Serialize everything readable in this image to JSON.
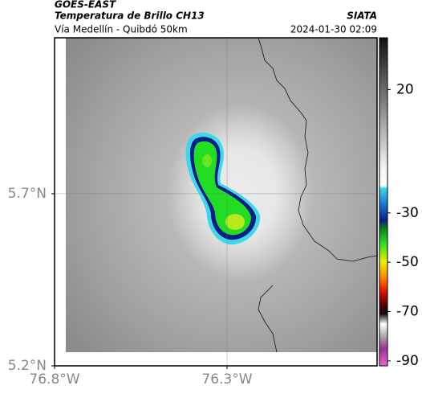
{
  "header": {
    "title": "GOES-EAST",
    "subtitle": "Temperatura de Brillo CH13",
    "location": "Vía Medellín - Quibdó 50km",
    "source": "SIATA",
    "timestamp": "2024-01-30 02:09"
  },
  "map": {
    "xlim": [
      -76.8,
      -75.865
    ],
    "ylim": [
      5.2,
      6.153
    ],
    "xticks": [
      {
        "value": -76.8,
        "label": "76.8°W"
      },
      {
        "value": -76.3,
        "label": "76.3°W"
      }
    ],
    "yticks": [
      {
        "value": 5.2,
        "label": "5.2°N"
      },
      {
        "value": 5.7,
        "label": "5.7°N"
      }
    ],
    "grid": true
  },
  "colorbar": {
    "lim": [
      -92,
      41
    ],
    "ticks": [
      20,
      -30,
      -50,
      -70,
      -90
    ],
    "colormap": [
      [
        41,
        "#111111"
      ],
      [
        -12,
        "#f4f4f4"
      ],
      [
        -19,
        "#ffffff"
      ],
      [
        -20,
        "#3fd8e8"
      ],
      [
        -27,
        "#1a6fd0"
      ],
      [
        -33,
        "#0a1e8a"
      ],
      [
        -36,
        "#0c7a1e"
      ],
      [
        -42,
        "#22dd22"
      ],
      [
        -50,
        "#eeee00"
      ],
      [
        -56,
        "#ff8800"
      ],
      [
        -62,
        "#dd1100"
      ],
      [
        -68,
        "#440000"
      ],
      [
        -71,
        "#111111"
      ],
      [
        -75,
        "#ffffff"
      ],
      [
        -80,
        "#aaaaaa"
      ],
      [
        -85,
        "#993399"
      ],
      [
        -92,
        "#ee66cc"
      ]
    ]
  }
}
